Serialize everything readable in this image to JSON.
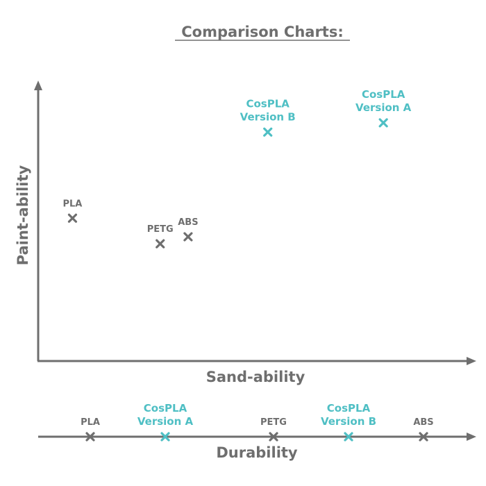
{
  "title": "Comparison Charts:",
  "colors": {
    "gray": "#6e6e6e",
    "teal": "#4fbfc4"
  },
  "chart_data": [
    {
      "type": "scatter",
      "xlabel": "Sand-ability",
      "ylabel": "Paint-ability",
      "xlim": [
        0,
        100
      ],
      "ylim": [
        0,
        100
      ],
      "grid": false,
      "points": [
        {
          "label": [
            "PLA"
          ],
          "x": 6,
          "y": 45,
          "highlight": false
        },
        {
          "label": [
            "PETG"
          ],
          "x": 28,
          "y": 34,
          "highlight": false
        },
        {
          "label": [
            "ABS"
          ],
          "x": 35,
          "y": 37,
          "highlight": false
        },
        {
          "label": [
            "CosPLA",
            "Version B"
          ],
          "x": 55,
          "y": 82,
          "highlight": true
        },
        {
          "label": [
            "CosPLA",
            "Version A"
          ],
          "x": 84,
          "y": 86,
          "highlight": true
        }
      ]
    },
    {
      "type": "scatter",
      "xlabel": "Durability",
      "xlim": [
        0,
        100
      ],
      "points": [
        {
          "label": [
            "PLA"
          ],
          "x": 10,
          "highlight": false
        },
        {
          "label": [
            "CosPLA",
            "Version A"
          ],
          "x": 28,
          "highlight": true
        },
        {
          "label": [
            "PETG"
          ],
          "x": 54,
          "highlight": false
        },
        {
          "label": [
            "CosPLA",
            "Version B"
          ],
          "x": 72,
          "highlight": true
        },
        {
          "label": [
            "ABS"
          ],
          "x": 90,
          "highlight": false
        }
      ]
    }
  ]
}
